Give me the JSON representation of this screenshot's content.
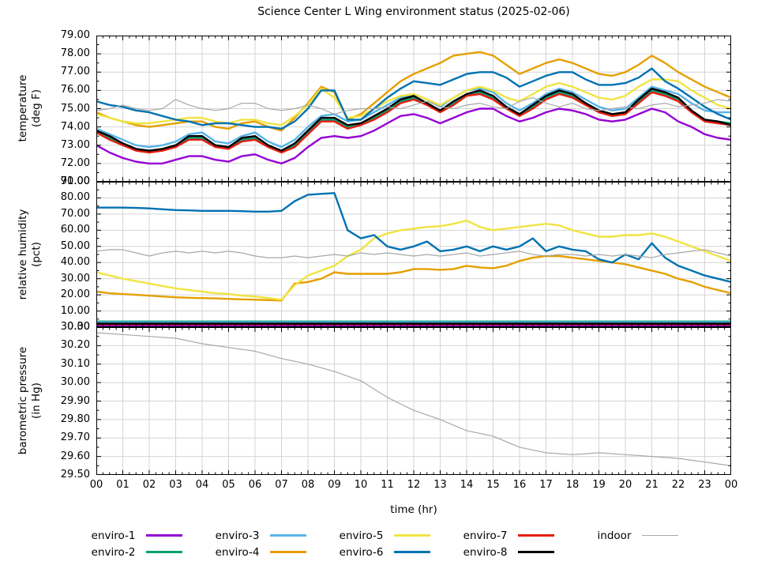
{
  "chart_data": {
    "type": "line",
    "title": "Science Center L Wing environment status (2025-02-06)",
    "xlabel": "time (hr)",
    "x_range": [
      0,
      24
    ],
    "x_major": 1,
    "x_minor": 0.25,
    "x_tick_labels": [
      "00",
      "01",
      "02",
      "03",
      "04",
      "05",
      "06",
      "07",
      "08",
      "09",
      "10",
      "11",
      "12",
      "13",
      "14",
      "15",
      "16",
      "17",
      "18",
      "19",
      "20",
      "21",
      "22",
      "23",
      "00"
    ],
    "grid": true,
    "grid_color": "#d4d4d4",
    "axis_color": "#000000",
    "legend_position": "bottom",
    "legend": [
      {
        "label": "enviro-1",
        "color": "#9400d3",
        "width": 3
      },
      {
        "label": "enviro-2",
        "color": "#009e73",
        "width": 3
      },
      {
        "label": "enviro-3",
        "color": "#56b4e9",
        "width": 3
      },
      {
        "label": "enviro-4",
        "color": "#e69f00",
        "width": 3
      },
      {
        "label": "enviro-5",
        "color": "#f0e442",
        "width": 3
      },
      {
        "label": "enviro-6",
        "color": "#0072b2",
        "width": 3
      },
      {
        "label": "enviro-7",
        "color": "#e51e10",
        "width": 3
      },
      {
        "label": "enviro-8",
        "color": "#000000",
        "width": 3
      },
      {
        "label": "indoor",
        "color": "#a8a8a8",
        "width": 1
      }
    ],
    "panels": [
      {
        "id": "temperature",
        "ylabel": [
          "temperature",
          "(deg F)"
        ],
        "ylim": [
          71,
          79
        ],
        "y_major": 1,
        "y_minor": 0.5,
        "ytick_labels": [
          "79.00",
          "78.00",
          "77.00",
          "76.00",
          "75.00",
          "74.00",
          "73.00",
          "72.00",
          "71.00"
        ],
        "series": [
          {
            "name": "enviro-1",
            "color": "#9400d3",
            "width": 2.4,
            "x0": 0,
            "dx": 0.5,
            "values": [
              73.0,
              72.6,
              72.3,
              72.1,
              72.0,
              72.0,
              72.2,
              72.4,
              72.4,
              72.2,
              72.1,
              72.4,
              72.5,
              72.2,
              72.0,
              72.3,
              72.9,
              73.4,
              73.5,
              73.4,
              73.5,
              73.8,
              74.2,
              74.6,
              74.7,
              74.5,
              74.2,
              74.5,
              74.8,
              75.0,
              75.0,
              74.6,
              74.3,
              74.5,
              74.8,
              75.0,
              74.9,
              74.7,
              74.4,
              74.3,
              74.4,
              74.7,
              75.0,
              74.8,
              74.3,
              74.0,
              73.6,
              73.4,
              73.3
            ]
          },
          {
            "name": "enviro-2",
            "color": "#009e73",
            "width": 2.4,
            "x0": 0,
            "dx": 0.5,
            "values": [
              73.8,
              73.4,
              73.0,
              72.8,
              72.7,
              72.8,
              73.0,
              73.4,
              73.4,
              73.0,
              72.9,
              73.3,
              73.4,
              73.0,
              72.7,
              73.0,
              73.7,
              74.4,
              74.4,
              74.0,
              74.2,
              74.5,
              74.9,
              75.4,
              75.6,
              75.3,
              74.9,
              75.3,
              75.8,
              75.9,
              75.6,
              75.1,
              74.7,
              75.1,
              75.6,
              75.9,
              75.7,
              75.3,
              74.9,
              74.7,
              74.8,
              75.4,
              76.0,
              75.8,
              75.5,
              74.9,
              74.4,
              74.3,
              74.2
            ]
          },
          {
            "name": "enviro-3",
            "color": "#56b4e9",
            "width": 2.4,
            "x0": 0,
            "dx": 0.5,
            "values": [
              73.9,
              73.6,
              73.3,
              73.0,
              72.9,
              73.0,
              73.2,
              73.6,
              73.7,
              73.2,
              73.1,
              73.5,
              73.7,
              73.2,
              72.9,
              73.3,
              74.0,
              74.6,
              74.7,
              74.3,
              74.4,
              74.8,
              75.2,
              75.6,
              75.8,
              75.5,
              75.1,
              75.6,
              76.0,
              76.1,
              75.9,
              75.3,
              74.9,
              75.3,
              75.8,
              76.1,
              75.9,
              75.5,
              75.1,
              74.9,
              75.0,
              75.6,
              76.2,
              76.0,
              75.8,
              75.3,
              74.9,
              74.8,
              74.8
            ]
          },
          {
            "name": "enviro-4",
            "color": "#e69f00",
            "width": 2.4,
            "x0": 0,
            "dx": 0.5,
            "values": [
              74.8,
              74.5,
              74.3,
              74.1,
              74.0,
              74.1,
              74.2,
              74.3,
              74.3,
              74.0,
              73.9,
              74.2,
              74.3,
              74.0,
              73.8,
              74.5,
              75.3,
              76.2,
              75.9,
              74.4,
              74.7,
              75.3,
              75.9,
              76.5,
              76.9,
              77.2,
              77.5,
              77.9,
              78.0,
              78.1,
              77.9,
              77.4,
              76.9,
              77.2,
              77.5,
              77.7,
              77.5,
              77.2,
              76.9,
              76.8,
              77.0,
              77.4,
              77.9,
              77.5,
              77.0,
              76.6,
              76.2,
              75.9,
              75.6
            ]
          },
          {
            "name": "enviro-5",
            "color": "#f0e442",
            "width": 2.4,
            "x0": 0,
            "dx": 0.5,
            "values": [
              74.7,
              74.5,
              74.3,
              74.2,
              74.2,
              74.3,
              74.4,
              74.5,
              74.5,
              74.3,
              74.2,
              74.4,
              74.4,
              74.2,
              74.1,
              74.6,
              75.2,
              76.1,
              75.6,
              74.5,
              74.6,
              75.0,
              75.4,
              75.7,
              75.8,
              75.5,
              75.2,
              75.6,
              76.0,
              76.2,
              76.0,
              75.6,
              75.4,
              75.8,
              76.2,
              76.4,
              76.2,
              75.9,
              75.6,
              75.5,
              75.7,
              76.2,
              76.6,
              76.6,
              76.5,
              76.0,
              75.6,
              75.2,
              75.0
            ]
          },
          {
            "name": "enviro-6",
            "color": "#0072b2",
            "width": 2.4,
            "x0": 0,
            "dx": 0.5,
            "values": [
              75.4,
              75.2,
              75.1,
              74.9,
              74.8,
              74.6,
              74.4,
              74.3,
              74.1,
              74.2,
              74.2,
              74.1,
              74.0,
              74.0,
              73.9,
              74.3,
              75.0,
              76.0,
              76.0,
              74.4,
              74.4,
              75.0,
              75.6,
              76.1,
              76.5,
              76.4,
              76.3,
              76.6,
              76.9,
              77.0,
              77.0,
              76.7,
              76.2,
              76.5,
              76.8,
              77.0,
              77.0,
              76.6,
              76.3,
              76.3,
              76.4,
              76.7,
              77.2,
              76.5,
              76.1,
              75.6,
              75.1,
              74.7,
              74.4
            ]
          },
          {
            "name": "enviro-7",
            "color": "#e51e10",
            "width": 2.4,
            "x0": 0,
            "dx": 0.5,
            "values": [
              73.7,
              73.3,
              73.0,
              72.7,
              72.6,
              72.7,
              72.9,
              73.3,
              73.3,
              72.9,
              72.8,
              73.2,
              73.3,
              72.9,
              72.6,
              72.9,
              73.6,
              74.3,
              74.3,
              73.9,
              74.1,
              74.4,
              74.8,
              75.3,
              75.5,
              75.2,
              74.8,
              75.2,
              75.7,
              75.8,
              75.5,
              75.0,
              74.6,
              75.0,
              75.5,
              75.8,
              75.6,
              75.2,
              74.8,
              74.6,
              74.7,
              75.3,
              75.9,
              75.7,
              75.4,
              74.8,
              74.3,
              74.2,
              74.1
            ]
          },
          {
            "name": "enviro-8",
            "color": "#000000",
            "width": 2.4,
            "x0": 0,
            "dx": 0.5,
            "values": [
              73.8,
              73.5,
              73.1,
              72.8,
              72.7,
              72.8,
              73.0,
              73.5,
              73.5,
              73.0,
              72.9,
              73.4,
              73.5,
              73.0,
              72.7,
              73.1,
              73.8,
              74.5,
              74.5,
              74.1,
              74.2,
              74.6,
              75.0,
              75.5,
              75.7,
              75.3,
              74.9,
              75.4,
              75.8,
              76.0,
              75.7,
              75.1,
              74.7,
              75.2,
              75.7,
              76.0,
              75.8,
              75.3,
              74.9,
              74.7,
              74.8,
              75.5,
              76.1,
              75.9,
              75.6,
              74.9,
              74.4,
              74.3,
              74.1
            ]
          },
          {
            "name": "indoor",
            "color": "#a8a8a8",
            "width": 1.2,
            "x0": 0,
            "dx": 0.5,
            "values": [
              74.9,
              75.0,
              75.2,
              75.0,
              74.9,
              75.0,
              75.5,
              75.2,
              75.0,
              74.9,
              75.0,
              75.3,
              75.3,
              75.0,
              74.9,
              75.0,
              75.2,
              75.0,
              74.7,
              74.9,
              75.0,
              75.0,
              75.1,
              75.0,
              75.2,
              75.4,
              75.1,
              75.0,
              75.2,
              75.3,
              75.1,
              75.0,
              75.4,
              75.6,
              75.3,
              75.1,
              75.3,
              75.0,
              74.9,
              75.0,
              75.1,
              75.0,
              75.2,
              75.3,
              75.1,
              75.2,
              75.3,
              75.5,
              75.4
            ]
          }
        ]
      },
      {
        "id": "humidity",
        "ylabel": [
          "relative humidity",
          "(pct)"
        ],
        "ylim": [
          0,
          90
        ],
        "y_major": 10,
        "y_minor": 5,
        "ytick_labels": [
          "90.00",
          "80.00",
          "70.00",
          "60.00",
          "50.00",
          "40.00",
          "30.00",
          "20.00",
          "10.00",
          "0.00"
        ],
        "series": [
          {
            "name": "enviro-1",
            "color": "#9400d3",
            "width": 2.4,
            "x0": 0,
            "dx": 24,
            "values": [
              1.1,
              1.1
            ]
          },
          {
            "name": "enviro-2",
            "color": "#009e73",
            "width": 2.4,
            "x0": 0,
            "dx": 24,
            "values": [
              3.5,
              3.5
            ]
          },
          {
            "name": "enviro-3",
            "color": "#56b4e9",
            "width": 2.4,
            "x0": 0,
            "dx": 24,
            "values": [
              3.0,
              3.0
            ]
          },
          {
            "name": "enviro-4",
            "color": "#e69f00",
            "width": 2.4,
            "x0": 0,
            "dx": 0.5,
            "values": [
              22,
              21,
              20.5,
              20,
              19.5,
              19,
              18.5,
              18.2,
              18,
              17.8,
              17.5,
              17.2,
              17,
              16.8,
              16.5,
              27,
              28,
              30,
              34,
              33,
              33,
              33,
              33,
              34,
              36,
              36,
              35.5,
              36,
              38,
              37,
              36.5,
              38,
              41,
              43,
              44,
              44,
              43,
              42,
              41,
              40,
              39,
              37,
              35,
              33,
              30,
              28,
              25,
              23,
              21
            ]
          },
          {
            "name": "enviro-5",
            "color": "#f0e442",
            "width": 2.4,
            "x0": 0,
            "dx": 0.5,
            "values": [
              34,
              32,
              30,
              28.5,
              27,
              25.5,
              24,
              23,
              22,
              21,
              20.5,
              19.5,
              19,
              18,
              17,
              26,
              32,
              35,
              38,
              44,
              48,
              55,
              58,
              60,
              61,
              62,
              62.5,
              64,
              66,
              62,
              60,
              61,
              62,
              63,
              64,
              63,
              60,
              58,
              56,
              56,
              57,
              57,
              58,
              56,
              53,
              50,
              47,
              44,
              41
            ]
          },
          {
            "name": "enviro-6",
            "color": "#0072b2",
            "width": 2.4,
            "x0": 0,
            "dx": 0.5,
            "values": [
              74,
              74,
              74,
              73.8,
              73.5,
              73,
              72.5,
              72.3,
              72,
              72,
              72,
              71.8,
              71.5,
              71.5,
              72,
              78,
              82,
              82.5,
              83,
              60,
              55,
              57,
              50,
              48,
              50,
              53,
              47,
              48,
              50,
              47,
              50,
              48,
              50,
              55,
              47,
              50,
              48,
              47,
              42,
              40,
              45,
              42,
              52,
              43,
              38,
              35,
              32,
              30,
              28
            ]
          },
          {
            "name": "enviro-7",
            "color": "#e51e10",
            "width": 2.4,
            "x0": 0,
            "dx": 24,
            "values": [
              1.8,
              1.8
            ]
          },
          {
            "name": "enviro-8",
            "color": "#000000",
            "width": 2.4,
            "x0": 0,
            "dx": 24,
            "values": [
              2.2,
              2.2
            ]
          },
          {
            "name": "indoor",
            "color": "#a8a8a8",
            "width": 1.2,
            "x0": 0,
            "dx": 0.5,
            "values": [
              47,
              48,
              48,
              46,
              44,
              46,
              47,
              46,
              47,
              46,
              47,
              46,
              44,
              43,
              43,
              44,
              43,
              44,
              45,
              44,
              46,
              45,
              46,
              45,
              44,
              45,
              44,
              45,
              46,
              44,
              45,
              46,
              47,
              45,
              44,
              45,
              45,
              44,
              45,
              44,
              45,
              44,
              43,
              45,
              46,
              47,
              48,
              46,
              44
            ]
          }
        ]
      },
      {
        "id": "pressure",
        "ylabel": [
          "barometric pressure",
          "(in Hg)"
        ],
        "ylim": [
          29.5,
          30.3
        ],
        "y_major": 0.1,
        "y_minor": 0.05,
        "ytick_labels": [
          "30.30",
          "30.20",
          "30.10",
          "30.00",
          "29.90",
          "29.80",
          "29.70",
          "29.60",
          "29.50"
        ],
        "series": [
          {
            "name": "indoor",
            "color": "#a8a8a8",
            "width": 1.2,
            "x0": 0,
            "dx": 1,
            "values": [
              30.27,
              30.26,
              30.25,
              30.24,
              30.21,
              30.19,
              30.17,
              30.13,
              30.1,
              30.06,
              30.01,
              29.92,
              29.85,
              29.8,
              29.74,
              29.71,
              29.65,
              29.62,
              29.61,
              29.62,
              29.61,
              29.6,
              29.59,
              29.57,
              29.55
            ]
          }
        ]
      }
    ]
  }
}
